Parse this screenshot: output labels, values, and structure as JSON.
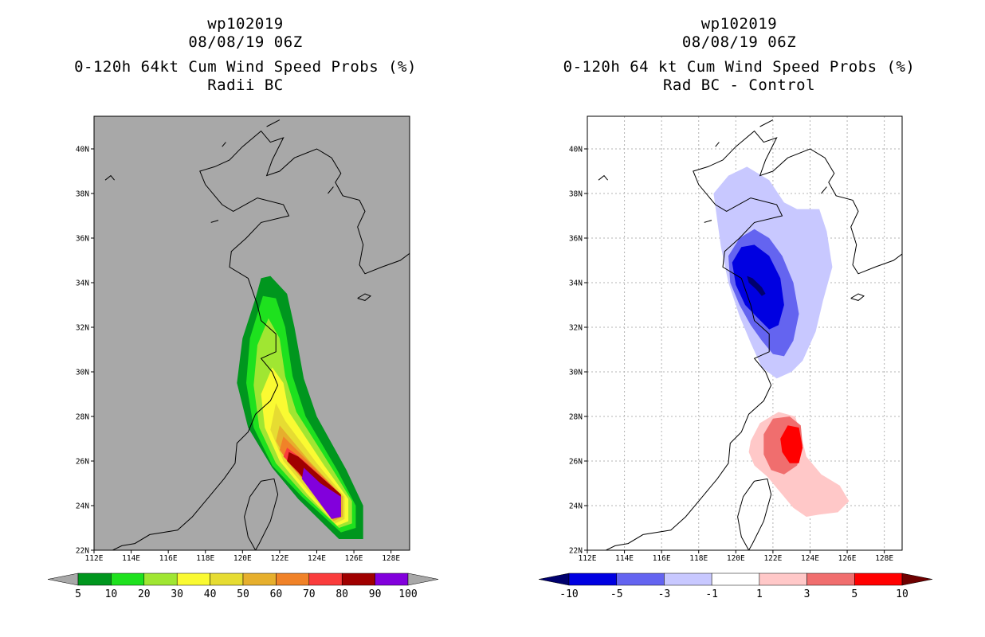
{
  "panels": [
    {
      "id": "left",
      "storm_id": "wp102019",
      "datetime": "08/08/19 06Z",
      "title": "0-120h 64kt Cum Wind Speed Probs (%)",
      "subtitle": "Radii BC",
      "background_color": "#a8a8a8",
      "colorbar": {
        "labels": [
          "5",
          "10",
          "20",
          "30",
          "40",
          "50",
          "60",
          "70",
          "80",
          "90",
          "100"
        ],
        "colors": [
          "#00961e",
          "#1ee11e",
          "#a0e632",
          "#fafa32",
          "#e6dc32",
          "#e6af2d",
          "#f08228",
          "#fa3c3c",
          "#a00000",
          "#8200dc"
        ],
        "under_color": "#a8a8a8",
        "over_color": "#a8a8a8"
      }
    },
    {
      "id": "right",
      "storm_id": "wp102019",
      "datetime": "08/08/19 06Z",
      "title": "0-120h 64 kt Cum Wind Speed Probs (%)",
      "subtitle": "Rad BC - Control",
      "background_color": "#ffffff",
      "colorbar": {
        "labels": [
          "-10",
          "-5",
          "-3",
          "-1",
          "1",
          "3",
          "5",
          "10"
        ],
        "colors": [
          "#0000e1",
          "#6464f0",
          "#c8c8ff",
          "#ffffff",
          "#ffc8c8",
          "#f06e6e",
          "#ff0000"
        ],
        "under_color": "#00006e",
        "over_color": "#6e0000"
      }
    }
  ],
  "map": {
    "lat_labels": [
      "40N",
      "38N",
      "36N",
      "34N",
      "32N",
      "30N",
      "28N",
      "26N",
      "24N",
      "22N"
    ],
    "lon_labels": [
      "112E",
      "114E",
      "116E",
      "118E",
      "120E",
      "122E",
      "124E",
      "126E",
      "128E"
    ]
  },
  "chart_data": [
    {
      "type": "heatmap",
      "title": "0-120h 64kt Cum Wind Speed Probs (%)",
      "subtitle": "Radii BC",
      "lon_range": [
        112,
        129
      ],
      "lat_range": [
        22,
        41.5
      ],
      "levels": [
        5,
        10,
        20,
        30,
        40,
        50,
        60,
        70,
        80,
        90,
        100
      ],
      "swath_track": [
        [
          34.2,
          121.3
        ],
        [
          32.5,
          121.9
        ],
        [
          30.5,
          121.7
        ],
        [
          28.5,
          122.1
        ],
        [
          26.8,
          122.9
        ],
        [
          25.6,
          124.0
        ],
        [
          24.4,
          125.3
        ],
        [
          23.2,
          125.6
        ]
      ],
      "regions": [
        {
          "level": 5,
          "polygon": [
            [
              121.0,
              34.2
            ],
            [
              121.5,
              34.3
            ],
            [
              122.4,
              33.5
            ],
            [
              122.8,
              32.0
            ],
            [
              123.3,
              29.7
            ],
            [
              124.0,
              28.0
            ],
            [
              125.6,
              25.6
            ],
            [
              126.5,
              24.0
            ],
            [
              126.5,
              22.5
            ],
            [
              125.2,
              22.5
            ],
            [
              123.0,
              24.3
            ],
            [
              121.6,
              25.7
            ],
            [
              120.3,
              27.5
            ],
            [
              119.7,
              29.5
            ],
            [
              120.0,
              31.5
            ],
            [
              120.7,
              33.3
            ]
          ]
        },
        {
          "level": 10,
          "polygon": [
            [
              121.1,
              33.4
            ],
            [
              121.8,
              33.3
            ],
            [
              122.3,
              32.0
            ],
            [
              122.7,
              29.8
            ],
            [
              123.4,
              28.0
            ],
            [
              125.1,
              25.6
            ],
            [
              126.1,
              24.0
            ],
            [
              126.1,
              23.0
            ],
            [
              125.3,
              22.8
            ],
            [
              123.2,
              24.4
            ],
            [
              121.6,
              25.8
            ],
            [
              120.6,
              27.5
            ],
            [
              120.2,
              29.5
            ],
            [
              120.4,
              31.5
            ]
          ]
        },
        {
          "level": 20,
          "polygon": [
            [
              121.4,
              32.4
            ],
            [
              122.0,
              31.5
            ],
            [
              122.3,
              29.8
            ],
            [
              122.9,
              28.2
            ],
            [
              124.8,
              25.7
            ],
            [
              125.9,
              24.2
            ],
            [
              125.9,
              23.2
            ],
            [
              125.2,
              23.0
            ],
            [
              123.3,
              24.5
            ],
            [
              121.8,
              25.9
            ],
            [
              120.9,
              27.5
            ],
            [
              120.6,
              29.4
            ],
            [
              120.8,
              31.2
            ]
          ]
        },
        {
          "level": 30,
          "polygon": [
            [
              121.6,
              30.2
            ],
            [
              122.2,
              29.5
            ],
            [
              122.5,
              28.2
            ],
            [
              124.4,
              25.8
            ],
            [
              125.7,
              24.3
            ],
            [
              125.7,
              23.3
            ],
            [
              125.1,
              23.1
            ],
            [
              123.5,
              24.5
            ],
            [
              122.0,
              26.0
            ],
            [
              121.2,
              27.5
            ],
            [
              121.0,
              29.0
            ]
          ]
        },
        {
          "level": 40,
          "polygon": [
            [
              121.8,
              28.6
            ],
            [
              122.3,
              27.8
            ],
            [
              124.0,
              25.9
            ],
            [
              125.5,
              24.4
            ],
            [
              125.5,
              23.4
            ],
            [
              125.0,
              23.2
            ],
            [
              123.6,
              24.6
            ],
            [
              122.2,
              26.0
            ],
            [
              121.5,
              27.4
            ]
          ]
        },
        {
          "level": 50,
          "polygon": [
            [
              122.0,
              27.6
            ],
            [
              123.6,
              26.0
            ],
            [
              125.4,
              24.4
            ],
            [
              125.4,
              23.5
            ],
            [
              124.9,
              23.3
            ],
            [
              123.7,
              24.7
            ],
            [
              122.4,
              26.0
            ],
            [
              121.8,
              26.9
            ]
          ]
        },
        {
          "level": 60,
          "polygon": [
            [
              122.2,
              27.1
            ],
            [
              123.4,
              26.1
            ],
            [
              125.3,
              24.5
            ],
            [
              125.3,
              23.5
            ],
            [
              124.8,
              23.4
            ],
            [
              123.8,
              24.7
            ],
            [
              122.6,
              25.8
            ],
            [
              122.0,
              26.5
            ]
          ]
        },
        {
          "level": 70,
          "polygon": [
            [
              122.4,
              26.6
            ],
            [
              123.2,
              26.1
            ],
            [
              125.3,
              24.5
            ],
            [
              125.3,
              23.5
            ],
            [
              124.8,
              23.4
            ],
            [
              123.9,
              24.6
            ],
            [
              122.8,
              25.7
            ],
            [
              122.2,
              26.2
            ]
          ]
        },
        {
          "level": 80,
          "polygon": [
            [
              122.5,
              26.4
            ],
            [
              123.0,
              26.2
            ],
            [
              125.3,
              24.5
            ],
            [
              125.3,
              23.5
            ],
            [
              124.8,
              23.4
            ],
            [
              124.0,
              24.5
            ],
            [
              123.0,
              25.5
            ],
            [
              122.4,
              26.0
            ]
          ]
        },
        {
          "level": 90,
          "polygon": [
            [
              123.3,
              25.7
            ],
            [
              124.2,
              25.0
            ],
            [
              125.3,
              24.4
            ],
            [
              125.3,
              23.5
            ],
            [
              124.8,
              23.4
            ],
            [
              124.0,
              24.3
            ],
            [
              123.2,
              25.2
            ]
          ]
        }
      ]
    },
    {
      "type": "heatmap",
      "title": "0-120h 64 kt Cum Wind Speed Probs (%)",
      "subtitle": "Rad BC - Control",
      "lon_range": [
        112,
        129
      ],
      "lat_range": [
        22,
        41.5
      ],
      "levels": [
        -10,
        -5,
        -3,
        -1,
        1,
        3,
        5,
        10
      ],
      "regions": [
        {
          "level": -1,
          "polygon": [
            [
              118.8,
              38.0
            ],
            [
              119.6,
              38.8
            ],
            [
              120.6,
              39.2
            ],
            [
              121.8,
              38.6
            ],
            [
              122.6,
              37.6
            ],
            [
              123.3,
              37.3
            ],
            [
              124.5,
              37.3
            ],
            [
              124.9,
              36.3
            ],
            [
              125.2,
              34.7
            ],
            [
              124.7,
              33.2
            ],
            [
              124.3,
              31.8
            ],
            [
              123.6,
              30.5
            ],
            [
              123.0,
              30.0
            ],
            [
              122.2,
              29.7
            ],
            [
              121.4,
              30.2
            ],
            [
              120.8,
              31.3
            ],
            [
              120.2,
              32.5
            ],
            [
              119.6,
              34.0
            ],
            [
              119.2,
              35.6
            ],
            [
              119.0,
              36.8
            ]
          ]
        },
        {
          "level": -3,
          "polygon": [
            [
              119.6,
              35.2
            ],
            [
              120.2,
              36.0
            ],
            [
              121.0,
              36.4
            ],
            [
              121.8,
              36.0
            ],
            [
              122.5,
              35.2
            ],
            [
              123.1,
              34.0
            ],
            [
              123.4,
              32.6
            ],
            [
              123.1,
              31.4
            ],
            [
              122.6,
              30.7
            ],
            [
              122.0,
              30.8
            ],
            [
              121.4,
              31.4
            ],
            [
              120.8,
              32.1
            ],
            [
              120.2,
              33.0
            ],
            [
              119.7,
              34.0
            ]
          ]
        },
        {
          "level": -5,
          "polygon": [
            [
              119.8,
              34.9
            ],
            [
              120.3,
              35.6
            ],
            [
              121.0,
              35.7
            ],
            [
              121.8,
              35.2
            ],
            [
              122.4,
              34.2
            ],
            [
              122.6,
              33.0
            ],
            [
              122.3,
              32.1
            ],
            [
              121.8,
              31.9
            ],
            [
              121.2,
              32.4
            ],
            [
              120.5,
              33.0
            ],
            [
              120.0,
              33.9
            ]
          ]
        },
        {
          "level": -10,
          "polygon": [
            [
              120.6,
              34.3
            ],
            [
              120.9,
              34.2
            ],
            [
              121.4,
              33.8
            ],
            [
              121.6,
              33.5
            ],
            [
              121.4,
              33.4
            ],
            [
              121.1,
              33.7
            ],
            [
              120.7,
              34.0
            ]
          ]
        },
        {
          "level": 1,
          "polygon": [
            [
              120.8,
              26.9
            ],
            [
              121.3,
              27.7
            ],
            [
              122.3,
              28.2
            ],
            [
              123.2,
              28.0
            ],
            [
              123.5,
              27.2
            ],
            [
              123.8,
              26.2
            ],
            [
              124.6,
              25.4
            ],
            [
              125.6,
              24.9
            ],
            [
              126.1,
              24.2
            ],
            [
              125.5,
              23.7
            ],
            [
              124.5,
              23.6
            ],
            [
              123.8,
              23.5
            ],
            [
              123.1,
              23.9
            ],
            [
              122.4,
              24.6
            ],
            [
              121.7,
              25.3
            ],
            [
              121.0,
              25.8
            ],
            [
              120.7,
              26.4
            ]
          ]
        },
        {
          "level": 3,
          "polygon": [
            [
              121.5,
              27.2
            ],
            [
              122.0,
              27.9
            ],
            [
              122.9,
              28.0
            ],
            [
              123.5,
              27.6
            ],
            [
              123.6,
              26.7
            ],
            [
              123.3,
              25.8
            ],
            [
              122.6,
              25.4
            ],
            [
              121.9,
              25.6
            ],
            [
              121.5,
              26.3
            ]
          ]
        },
        {
          "level": 5,
          "polygon": [
            [
              122.4,
              27.0
            ],
            [
              122.8,
              27.6
            ],
            [
              123.4,
              27.5
            ],
            [
              123.6,
              26.6
            ],
            [
              123.4,
              25.9
            ],
            [
              122.9,
              25.9
            ],
            [
              122.5,
              26.4
            ]
          ]
        }
      ]
    }
  ]
}
